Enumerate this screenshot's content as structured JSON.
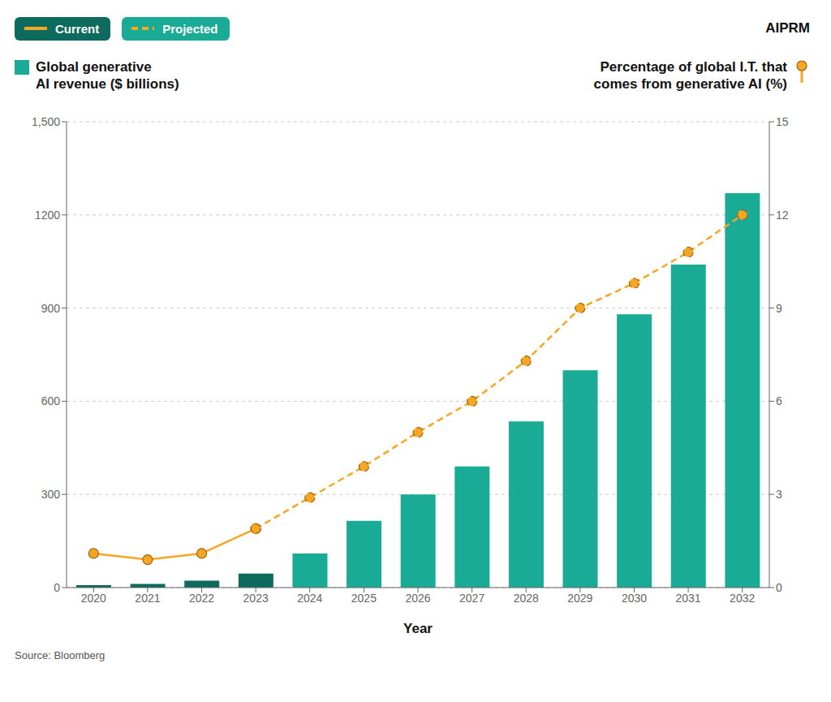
{
  "chart_data": {
    "type": "bar",
    "xlabel": "Year",
    "ylabel": "Global generative\nAI revenue ($ billions)",
    "y2label": "Percentage of global I.T. that\ncomes from generative AI (%)",
    "categories": [
      "2020",
      "2021",
      "2022",
      "2023",
      "2024",
      "2025",
      "2026",
      "2027",
      "2028",
      "2029",
      "2030",
      "2031",
      "2032"
    ],
    "series": [
      {
        "name": "Current",
        "type": "bar",
        "color": "#0d6b5e",
        "values": [
          8,
          12,
          22,
          45,
          null,
          null,
          null,
          null,
          null,
          null,
          null,
          null,
          null
        ]
      },
      {
        "name": "Projected",
        "type": "bar",
        "color": "#1aab96",
        "values": [
          null,
          null,
          null,
          null,
          110,
          215,
          300,
          390,
          535,
          700,
          880,
          1040,
          1270
        ]
      },
      {
        "type": "line",
        "axis": "y2",
        "color": "#f5a623",
        "line_style": "solid",
        "marker": "circle",
        "values": [
          1.1,
          0.9,
          1.1,
          1.9,
          null,
          null,
          null,
          null,
          null,
          null,
          null,
          null,
          null
        ]
      },
      {
        "type": "line",
        "axis": "y2",
        "color": "#f5a623",
        "line_style": "dashed",
        "marker": "circle",
        "values": [
          null,
          null,
          null,
          1.9,
          2.9,
          3.9,
          5.0,
          6.0,
          7.3,
          9.0,
          9.8,
          10.8,
          12.0
        ]
      }
    ],
    "ylim": [
      0,
      1500
    ],
    "yticks": [
      0,
      300,
      600,
      900,
      1200,
      {
        "value": 1500,
        "label": "1,500"
      }
    ],
    "y2lim": [
      0,
      15
    ],
    "y2ticks": [
      0,
      3,
      6,
      9,
      12,
      15
    ],
    "grid": true,
    "annotations": [
      "AIPRM",
      "Source: Bloomberg"
    ]
  }
}
